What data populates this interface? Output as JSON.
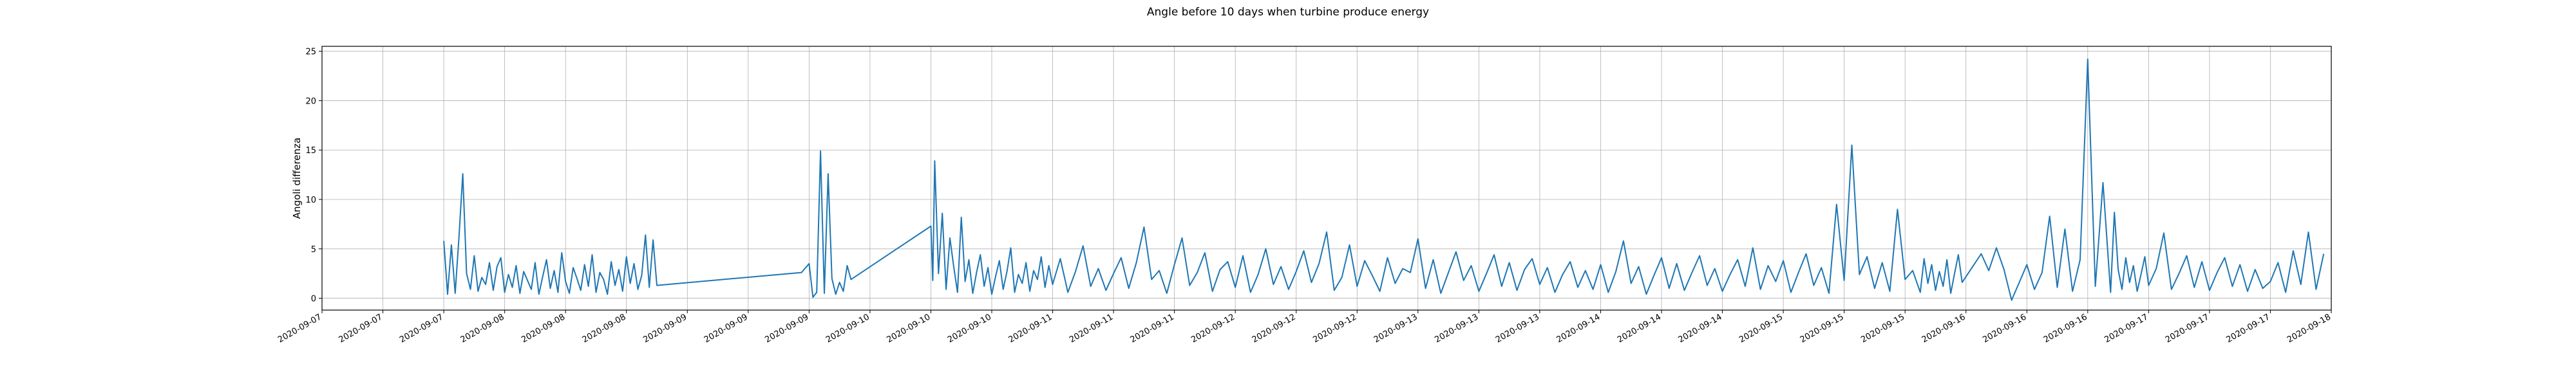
{
  "chart_data": {
    "type": "line",
    "title": "Angle before 10 days when turbine produce energy",
    "xlabel": "",
    "ylabel": "Angoli differenza",
    "grid": true,
    "line_color": "#1f77b4",
    "ylim": [
      -1.2,
      25.5
    ],
    "yticks": [
      0,
      5,
      10,
      15,
      20,
      25
    ],
    "xlim": [
      "2020-09-07 00:00",
      "2020-09-18 00:00"
    ],
    "x_tick_labels": [
      "2020-09-07",
      "2020-09-07",
      "2020-09-07",
      "2020-09-08",
      "2020-09-08",
      "2020-09-08",
      "2020-09-09",
      "2020-09-09",
      "2020-09-09",
      "2020-09-10",
      "2020-09-10",
      "2020-09-10",
      "2020-09-11",
      "2020-09-11",
      "2020-09-11",
      "2020-09-12",
      "2020-09-12",
      "2020-09-12",
      "2020-09-13",
      "2020-09-13",
      "2020-09-13",
      "2020-09-14",
      "2020-09-14",
      "2020-09-14",
      "2020-09-15",
      "2020-09-15",
      "2020-09-15",
      "2020-09-16",
      "2020-09-16",
      "2020-09-16",
      "2020-09-17",
      "2020-09-17",
      "2020-09-17",
      "2020-09-18"
    ],
    "series": [
      {
        "name": "",
        "x": [
          "2020-09-07 16:00",
          "2020-09-07 16:30",
          "2020-09-07 17:00",
          "2020-09-07 17:30",
          "2020-09-07 18:00",
          "2020-09-07 18:30",
          "2020-09-07 19:00",
          "2020-09-07 19:30",
          "2020-09-07 20:00",
          "2020-09-07 20:30",
          "2020-09-07 21:00",
          "2020-09-07 21:30",
          "2020-09-07 22:00",
          "2020-09-07 22:30",
          "2020-09-07 23:00",
          "2020-09-07 23:30",
          "2020-09-08 00:00",
          "2020-09-08 00:30",
          "2020-09-08 01:00",
          "2020-09-08 01:30",
          "2020-09-08 02:00",
          "2020-09-08 02:30",
          "2020-09-08 03:00",
          "2020-09-08 03:30",
          "2020-09-08 04:00",
          "2020-09-08 04:30",
          "2020-09-08 05:00",
          "2020-09-08 05:30",
          "2020-09-08 06:00",
          "2020-09-08 06:30",
          "2020-09-08 07:00",
          "2020-09-08 07:30",
          "2020-09-08 08:00",
          "2020-09-08 08:30",
          "2020-09-08 09:00",
          "2020-09-08 09:30",
          "2020-09-08 10:00",
          "2020-09-08 10:30",
          "2020-09-08 11:00",
          "2020-09-08 11:30",
          "2020-09-08 12:00",
          "2020-09-08 12:30",
          "2020-09-08 13:00",
          "2020-09-08 13:30",
          "2020-09-08 14:00",
          "2020-09-08 14:30",
          "2020-09-08 15:00",
          "2020-09-08 15:30",
          "2020-09-08 16:00",
          "2020-09-08 16:30",
          "2020-09-08 17:00",
          "2020-09-08 17:30",
          "2020-09-08 18:00",
          "2020-09-08 18:30",
          "2020-09-08 19:00",
          "2020-09-08 19:30",
          "2020-09-08 20:00",
          "2020-09-09 15:00",
          "2020-09-09 16:00",
          "2020-09-09 16:30",
          "2020-09-09 17:00",
          "2020-09-09 17:30",
          "2020-09-09 18:00",
          "2020-09-09 18:30",
          "2020-09-09 19:00",
          "2020-09-09 19:30",
          "2020-09-09 20:00",
          "2020-09-09 20:30",
          "2020-09-09 21:00",
          "2020-09-09 21:30",
          "2020-09-10 08:00",
          "2020-09-10 08:15",
          "2020-09-10 08:30",
          "2020-09-10 09:00",
          "2020-09-10 09:30",
          "2020-09-10 10:00",
          "2020-09-10 10:30",
          "2020-09-10 11:00",
          "2020-09-10 11:30",
          "2020-09-10 12:00",
          "2020-09-10 12:30",
          "2020-09-10 13:00",
          "2020-09-10 13:30",
          "2020-09-10 14:00",
          "2020-09-10 14:30",
          "2020-09-10 15:00",
          "2020-09-10 15:30",
          "2020-09-10 16:00",
          "2020-09-10 16:30",
          "2020-09-10 17:00",
          "2020-09-10 17:30",
          "2020-09-10 18:00",
          "2020-09-10 18:30",
          "2020-09-10 19:00",
          "2020-09-10 19:30",
          "2020-09-10 20:00",
          "2020-09-10 20:30",
          "2020-09-10 21:00",
          "2020-09-10 21:30",
          "2020-09-10 22:00",
          "2020-09-10 22:30",
          "2020-09-10 23:00",
          "2020-09-10 23:30",
          "2020-09-11 00:00",
          "2020-09-11 01:00",
          "2020-09-11 02:00",
          "2020-09-11 03:00",
          "2020-09-11 04:00",
          "2020-09-11 05:00",
          "2020-09-11 06:00",
          "2020-09-11 07:00",
          "2020-09-11 08:00",
          "2020-09-11 09:00",
          "2020-09-11 10:00",
          "2020-09-11 11:00",
          "2020-09-11 12:00",
          "2020-09-11 13:00",
          "2020-09-11 14:00",
          "2020-09-11 15:00",
          "2020-09-11 16:00",
          "2020-09-11 17:00",
          "2020-09-11 18:00",
          "2020-09-11 19:00",
          "2020-09-11 20:00",
          "2020-09-11 21:00",
          "2020-09-11 22:00",
          "2020-09-11 23:00",
          "2020-09-12 00:00",
          "2020-09-12 01:00",
          "2020-09-12 02:00",
          "2020-09-12 03:00",
          "2020-09-12 04:00",
          "2020-09-12 05:00",
          "2020-09-12 06:00",
          "2020-09-12 07:00",
          "2020-09-12 08:00",
          "2020-09-12 09:00",
          "2020-09-12 10:00",
          "2020-09-12 11:00",
          "2020-09-12 12:00",
          "2020-09-12 13:00",
          "2020-09-12 14:00",
          "2020-09-12 15:00",
          "2020-09-12 16:00",
          "2020-09-12 17:00",
          "2020-09-12 18:00",
          "2020-09-12 19:00",
          "2020-09-12 20:00",
          "2020-09-12 21:00",
          "2020-09-12 22:00",
          "2020-09-12 23:00",
          "2020-09-13 00:00",
          "2020-09-13 01:00",
          "2020-09-13 02:00",
          "2020-09-13 03:00",
          "2020-09-13 04:00",
          "2020-09-13 05:00",
          "2020-09-13 06:00",
          "2020-09-13 07:00",
          "2020-09-13 08:00",
          "2020-09-13 09:00",
          "2020-09-13 10:00",
          "2020-09-13 11:00",
          "2020-09-13 12:00",
          "2020-09-13 13:00",
          "2020-09-13 14:00",
          "2020-09-13 15:00",
          "2020-09-13 16:00",
          "2020-09-13 17:00",
          "2020-09-13 18:00",
          "2020-09-13 19:00",
          "2020-09-13 20:00",
          "2020-09-13 21:00",
          "2020-09-13 22:00",
          "2020-09-13 23:00",
          "2020-09-14 00:00",
          "2020-09-14 01:00",
          "2020-09-14 02:00",
          "2020-09-14 03:00",
          "2020-09-14 04:00",
          "2020-09-14 05:00",
          "2020-09-14 06:00",
          "2020-09-14 07:00",
          "2020-09-14 08:00",
          "2020-09-14 09:00",
          "2020-09-14 10:00",
          "2020-09-14 11:00",
          "2020-09-14 12:00",
          "2020-09-14 13:00",
          "2020-09-14 14:00",
          "2020-09-14 15:00",
          "2020-09-14 16:00",
          "2020-09-14 17:00",
          "2020-09-14 18:00",
          "2020-09-14 19:00",
          "2020-09-14 20:00",
          "2020-09-14 21:00",
          "2020-09-14 22:00",
          "2020-09-14 23:00",
          "2020-09-15 00:00",
          "2020-09-15 01:00",
          "2020-09-15 02:00",
          "2020-09-15 03:00",
          "2020-09-15 04:00",
          "2020-09-15 05:00",
          "2020-09-15 06:00",
          "2020-09-15 07:00",
          "2020-09-15 08:00",
          "2020-09-15 09:00",
          "2020-09-15 10:00",
          "2020-09-15 11:00",
          "2020-09-15 12:00",
          "2020-09-15 13:00",
          "2020-09-15 14:00",
          "2020-09-15 15:00",
          "2020-09-15 16:00",
          "2020-09-15 17:00",
          "2020-09-15 18:00",
          "2020-09-15 18:30",
          "2020-09-15 19:00",
          "2020-09-15 19:30",
          "2020-09-15 20:00",
          "2020-09-15 20:30",
          "2020-09-15 21:00",
          "2020-09-15 21:30",
          "2020-09-15 22:00",
          "2020-09-15 22:30",
          "2020-09-15 23:00",
          "2020-09-15 23:30",
          "2020-09-16 02:00",
          "2020-09-16 03:00",
          "2020-09-16 04:00",
          "2020-09-16 05:00",
          "2020-09-16 06:00",
          "2020-09-16 07:00",
          "2020-09-16 08:00",
          "2020-09-16 09:00",
          "2020-09-16 10:00",
          "2020-09-16 11:00",
          "2020-09-16 12:00",
          "2020-09-16 13:00",
          "2020-09-16 14:00",
          "2020-09-16 15:00",
          "2020-09-16 16:00",
          "2020-09-16 17:00",
          "2020-09-16 18:00",
          "2020-09-16 19:00",
          "2020-09-16 19:30",
          "2020-09-16 20:00",
          "2020-09-16 20:30",
          "2020-09-16 21:00",
          "2020-09-16 21:30",
          "2020-09-16 22:00",
          "2020-09-16 22:30",
          "2020-09-16 23:00",
          "2020-09-16 23:30",
          "2020-09-17 00:00",
          "2020-09-17 01:00",
          "2020-09-17 02:00",
          "2020-09-17 03:00",
          "2020-09-17 04:00",
          "2020-09-17 05:00",
          "2020-09-17 06:00",
          "2020-09-17 07:00",
          "2020-09-17 08:00",
          "2020-09-17 09:00",
          "2020-09-17 10:00",
          "2020-09-17 11:00",
          "2020-09-17 12:00",
          "2020-09-17 13:00",
          "2020-09-17 14:00",
          "2020-09-17 15:00",
          "2020-09-17 16:00",
          "2020-09-17 17:00",
          "2020-09-17 18:00",
          "2020-09-17 19:00",
          "2020-09-17 20:00",
          "2020-09-17 21:00",
          "2020-09-17 22:00",
          "2020-09-17 23:00"
        ],
        "y": [
          5.8,
          0.4,
          5.4,
          0.5,
          6.2,
          12.6,
          2.5,
          0.9,
          4.3,
          0.7,
          2.1,
          1.4,
          3.6,
          0.8,
          3.2,
          4.1,
          0.6,
          2.4,
          1.1,
          3.3,
          0.5,
          2.7,
          1.8,
          0.9,
          3.6,
          0.4,
          2.2,
          3.9,
          1.0,
          2.8,
          0.6,
          4.6,
          1.7,
          0.5,
          3.1,
          2.0,
          0.8,
          3.4,
          1.2,
          4.4,
          0.6,
          2.6,
          1.9,
          0.4,
          3.7,
          1.3,
          2.9,
          0.7,
          4.2,
          1.5,
          3.5,
          0.9,
          2.3,
          6.4,
          1.1,
          5.9,
          1.3,
          2.6,
          3.5,
          0.1,
          0.6,
          14.9,
          0.5,
          12.6,
          2.0,
          0.4,
          1.6,
          0.7,
          3.3,
          1.9,
          7.3,
          1.8,
          13.9,
          2.5,
          8.6,
          0.9,
          6.1,
          3.2,
          0.6,
          8.2,
          1.7,
          3.9,
          0.5,
          2.6,
          4.4,
          1.2,
          3.1,
          0.4,
          2.2,
          3.8,
          0.9,
          2.7,
          5.1,
          0.6,
          2.4,
          1.5,
          3.6,
          0.7,
          2.8,
          1.9,
          4.2,
          1.1,
          3.3,
          1.4,
          4.0,
          0.6,
          2.7,
          5.3,
          1.2,
          3.0,
          0.8,
          2.5,
          4.1,
          1.0,
          3.6,
          7.2,
          1.9,
          2.8,
          0.5,
          3.4,
          6.1,
          1.3,
          2.6,
          4.6,
          0.7,
          2.9,
          3.7,
          1.1,
          4.3,
          0.6,
          2.4,
          5.0,
          1.4,
          3.2,
          0.9,
          2.7,
          4.8,
          1.6,
          3.5,
          6.7,
          0.8,
          2.1,
          5.4,
          1.2,
          3.8,
          2.3,
          0.7,
          4.1,
          1.5,
          3.0,
          2.6,
          6.0,
          1.0,
          3.9,
          0.5,
          2.6,
          4.7,
          1.8,
          3.3,
          0.7,
          2.5,
          4.4,
          1.2,
          3.6,
          0.8,
          2.9,
          4.0,
          1.4,
          3.1,
          0.6,
          2.4,
          3.7,
          1.1,
          2.8,
          0.9,
          3.4,
          0.6,
          2.7,
          5.8,
          1.5,
          3.2,
          0.4,
          2.3,
          4.1,
          1.0,
          3.5,
          0.8,
          2.6,
          4.3,
          1.3,
          3.0,
          0.7,
          2.4,
          3.9,
          1.2,
          5.1,
          0.9,
          3.3,
          1.7,
          3.8,
          0.6,
          2.6,
          4.5,
          1.3,
          3.1,
          0.5,
          9.5,
          1.8,
          15.5,
          2.4,
          4.2,
          1.0,
          3.6,
          0.7,
          9.0,
          1.9,
          2.8,
          0.6,
          4.0,
          1.5,
          3.4,
          0.8,
          2.7,
          1.2,
          3.9,
          0.5,
          2.5,
          4.4,
          1.6,
          4.5,
          2.8,
          5.1,
          2.9,
          -0.2,
          1.6,
          3.4,
          0.9,
          2.6,
          8.3,
          1.1,
          7.0,
          0.7,
          3.9,
          24.2,
          1.2,
          11.7,
          0.6,
          8.7,
          2.9,
          0.9,
          4.1,
          1.6,
          3.3,
          0.7,
          2.4,
          4.2,
          1.3,
          3.0,
          6.6,
          0.9,
          2.5,
          4.3,
          1.1,
          3.7,
          0.8,
          2.6,
          4.1,
          1.2,
          3.4,
          0.7,
          2.9,
          1.0,
          1.7,
          3.6,
          0.6,
          4.8,
          1.4,
          6.7,
          0.9,
          4.5
        ]
      }
    ]
  }
}
